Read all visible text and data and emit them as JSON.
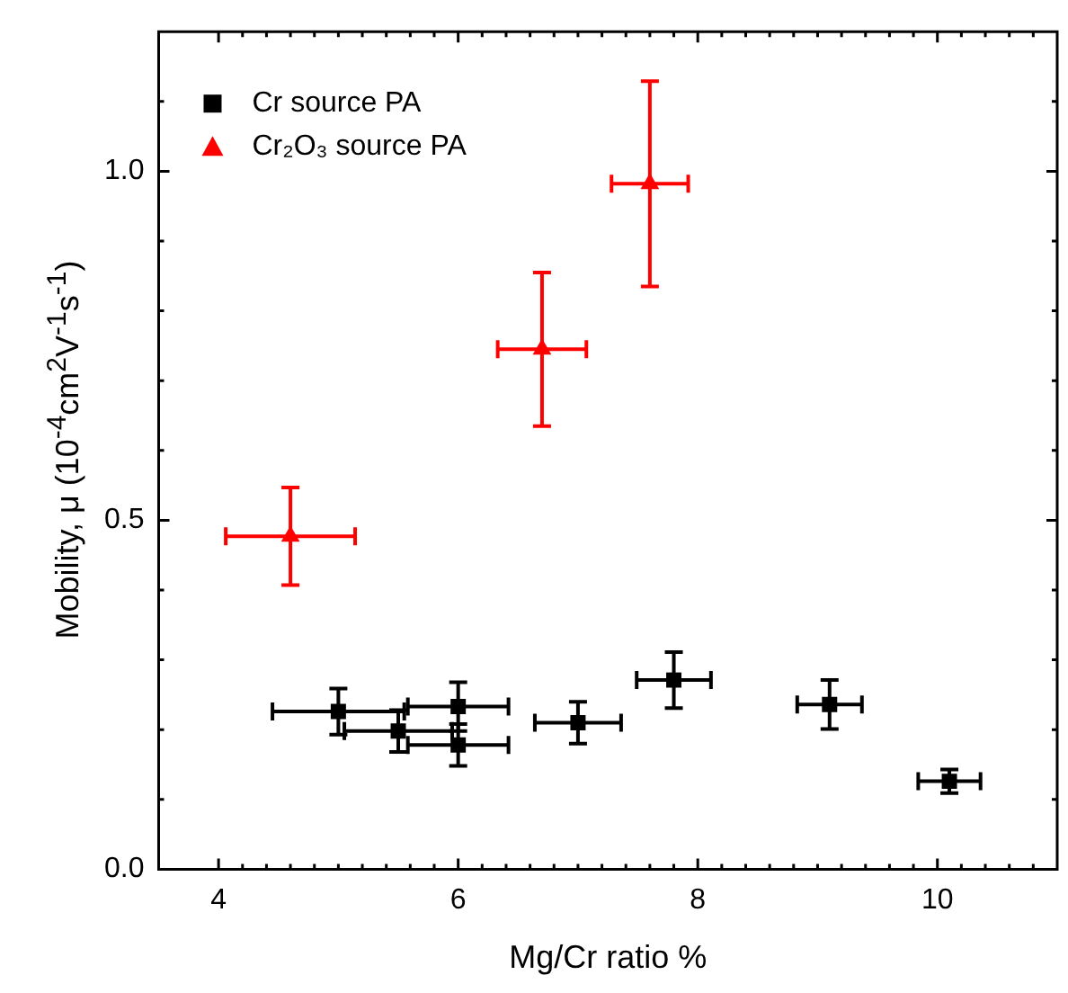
{
  "chart_data": {
    "type": "scatter",
    "xlabel": "Mg/Cr ratio %",
    "ylabel": "Mobility, μ (10$^{-4}$cm$^{2}$V$^{-1}$s$^{-1}$)",
    "xlim": [
      3.5,
      11
    ],
    "ylim": [
      0,
      1.2
    ],
    "xticks": [
      4,
      {
        "value": 4.2,
        "label": null
      },
      {
        "value": 4.4,
        "label": null
      },
      {
        "value": 4.6,
        "label": null
      },
      {
        "value": 4.8,
        "label": null
      },
      {
        "value": 5,
        "label": null
      },
      {
        "value": 5.2,
        "label": null
      },
      {
        "value": 5.4,
        "label": null
      },
      {
        "value": 5.6,
        "label": null
      },
      {
        "value": 5.8,
        "label": null
      },
      6,
      {
        "value": 6.2,
        "label": null
      },
      {
        "value": 6.4,
        "label": null
      },
      {
        "value": 6.6,
        "label": null
      },
      {
        "value": 6.8,
        "label": null
      },
      {
        "value": 7,
        "label": null
      },
      {
        "value": 7.2,
        "label": null
      },
      {
        "value": 7.4,
        "label": null
      },
      {
        "value": 7.6,
        "label": null
      },
      {
        "value": 7.8,
        "label": null
      },
      8,
      {
        "value": 8.2,
        "label": null
      },
      {
        "value": 8.4,
        "label": null
      },
      {
        "value": 8.6,
        "label": null
      },
      {
        "value": 8.8,
        "label": null
      },
      {
        "value": 9,
        "label": null
      },
      {
        "value": 9.2,
        "label": null
      },
      {
        "value": 9.4,
        "label": null
      },
      {
        "value": 9.6,
        "label": null
      },
      {
        "value": 9.8,
        "label": null
      },
      10,
      {
        "value": 10.2,
        "label": null
      },
      {
        "value": 10.4,
        "label": null
      },
      {
        "value": 10.6,
        "label": null
      },
      {
        "value": 10.8,
        "label": null
      }
    ],
    "yticks": [
      {
        "value": 0,
        "label": "0.0"
      },
      {
        "value": 0.1,
        "label": null
      },
      {
        "value": 0.2,
        "label": null
      },
      {
        "value": 0.3,
        "label": null
      },
      {
        "value": 0.4,
        "label": null
      },
      {
        "value": 0.5,
        "label": "0.5"
      },
      {
        "value": 0.6,
        "label": null
      },
      {
        "value": 0.7,
        "label": null
      },
      {
        "value": 0.8,
        "label": null
      },
      {
        "value": 0.9,
        "label": null
      },
      {
        "value": 1,
        "label": "1.0"
      },
      {
        "value": 1.1,
        "label": null
      }
    ],
    "legend": "top left",
    "grid": false,
    "series": [
      {
        "name": "Cr source PA",
        "color": "#000000",
        "marker": "square",
        "x": [
          5.0,
          5.5,
          6.0,
          6.0,
          7.0,
          7.8,
          9.1,
          10.1
        ],
        "values": [
          0.226,
          0.198,
          0.233,
          0.178,
          0.21,
          0.271,
          0.236,
          0.126
        ],
        "errors": [
          0.033,
          0.03,
          0.035,
          0.03,
          0.03,
          0.04,
          0.035,
          0.017
        ],
        "xerrors": [
          0.55,
          0.45,
          0.42,
          0.42,
          0.36,
          0.31,
          0.27,
          0.26
        ]
      },
      {
        "name": "Cr₂O₃ source PA",
        "color": "#ff0000",
        "marker": "triangle",
        "x": [
          4.6,
          6.7,
          7.6
        ],
        "values": [
          0.477,
          0.745,
          0.982
        ],
        "errors": [
          0.07,
          0.11,
          0.147
        ],
        "xerrors": [
          0.54,
          0.37,
          0.32
        ]
      }
    ]
  }
}
